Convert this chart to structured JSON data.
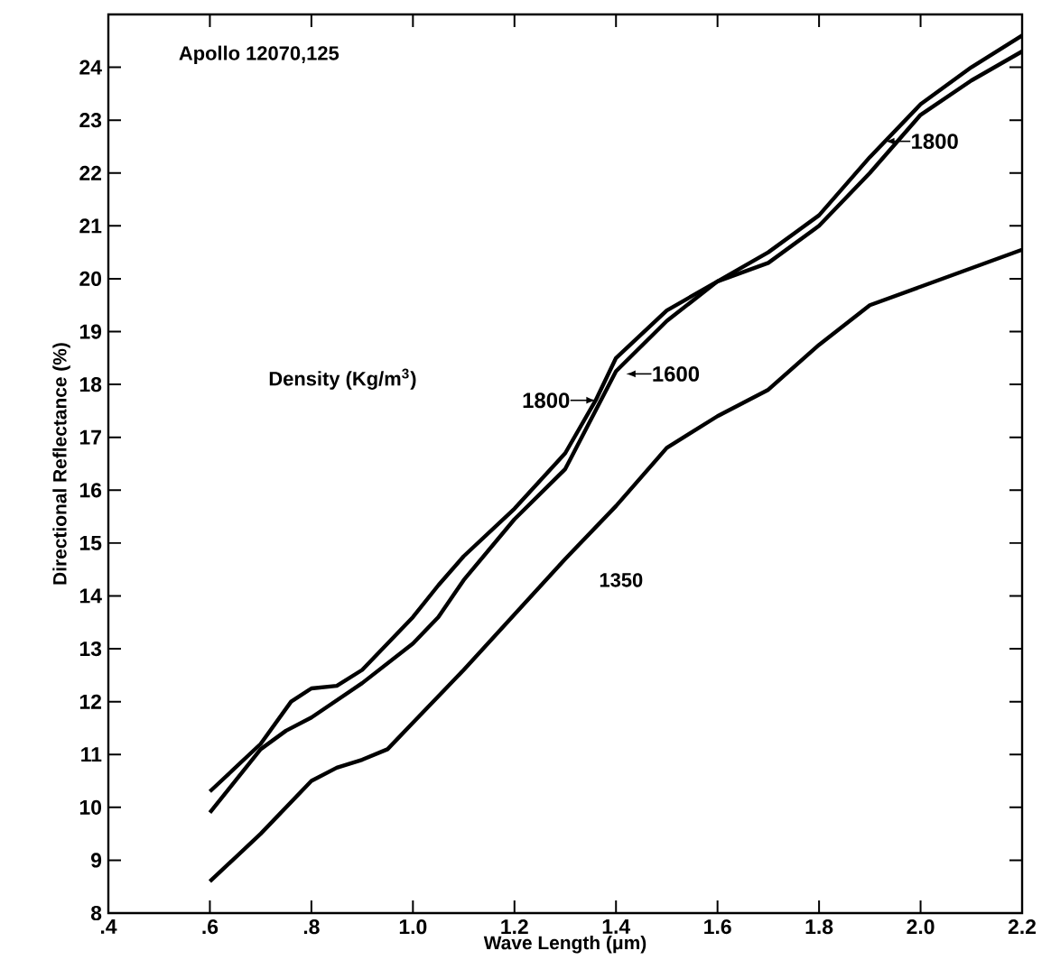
{
  "chart_data": {
    "type": "line",
    "xlabel": "Wave Length (μm)",
    "ylabel": "Directional Reflectance (%)",
    "xlim": [
      0.4,
      2.2
    ],
    "ylim": [
      8,
      25
    ],
    "xticks": [
      {
        "value": 0.4,
        "label": ".4"
      },
      {
        "value": 0.6,
        "label": ".6"
      },
      {
        "value": 0.8,
        "label": ".8"
      },
      {
        "value": 1.0,
        "label": "1.0"
      },
      {
        "value": 1.2,
        "label": "1.2"
      },
      {
        "value": 1.4,
        "label": "1.4"
      },
      {
        "value": 1.6,
        "label": "1.6"
      },
      {
        "value": 1.8,
        "label": "1.8"
      },
      {
        "value": 2.0,
        "label": "2.0"
      },
      {
        "value": 2.2,
        "label": "2.2"
      }
    ],
    "yticks": [
      8,
      9,
      10,
      11,
      12,
      13,
      14,
      15,
      16,
      17,
      18,
      19,
      20,
      21,
      22,
      23,
      24
    ],
    "grid": false,
    "marker": "none",
    "line_style": "solid",
    "series": [
      {
        "color": "#000000",
        "x": [
          0.6,
          0.7,
          0.76,
          0.8,
          0.85,
          0.9,
          0.95,
          1.0,
          1.05,
          1.1,
          1.2,
          1.3,
          1.36,
          1.4,
          1.5,
          1.6,
          1.7,
          1.8,
          1.9,
          2.0,
          2.1,
          2.2
        ],
        "values": [
          10.3,
          11.2,
          12.0,
          12.25,
          12.3,
          12.6,
          13.1,
          13.6,
          14.2,
          14.75,
          15.65,
          16.7,
          17.7,
          18.5,
          19.4,
          19.95,
          20.3,
          21.0,
          22.0,
          23.1,
          23.75,
          24.3
        ]
      },
      {
        "color": "#000000",
        "x": [
          0.6,
          0.7,
          0.75,
          0.8,
          0.9,
          1.0,
          1.05,
          1.1,
          1.2,
          1.3,
          1.4,
          1.5,
          1.6,
          1.7,
          1.8,
          1.9,
          2.0,
          2.1,
          2.2
        ],
        "values": [
          9.9,
          11.1,
          11.45,
          11.7,
          12.35,
          13.1,
          13.6,
          14.3,
          15.45,
          16.4,
          18.25,
          19.2,
          19.95,
          20.5,
          21.2,
          22.3,
          23.3,
          24.0,
          24.6
        ]
      },
      {
        "color": "#000000",
        "x": [
          0.6,
          0.7,
          0.8,
          0.85,
          0.9,
          0.95,
          1.0,
          1.1,
          1.2,
          1.3,
          1.4,
          1.5,
          1.6,
          1.7,
          1.8,
          1.9,
          2.0,
          2.1,
          2.2
        ],
        "values": [
          8.6,
          9.5,
          10.5,
          10.75,
          10.9,
          11.1,
          11.6,
          12.6,
          13.65,
          14.7,
          15.7,
          16.8,
          17.4,
          17.9,
          18.75,
          19.5,
          19.85,
          20.2,
          20.55
        ]
      }
    ],
    "annotations": [
      "Apollo 12070,125",
      "Density (Kg/m$^{3}$)",
      {
        "text": "1800",
        "x": 1.36,
        "y": 17.7
      },
      {
        "text": "1600",
        "x": 1.42,
        "y": 18.2
      },
      {
        "text": "1800",
        "x": 1.93,
        "y": 22.6
      },
      "1350"
    ]
  }
}
